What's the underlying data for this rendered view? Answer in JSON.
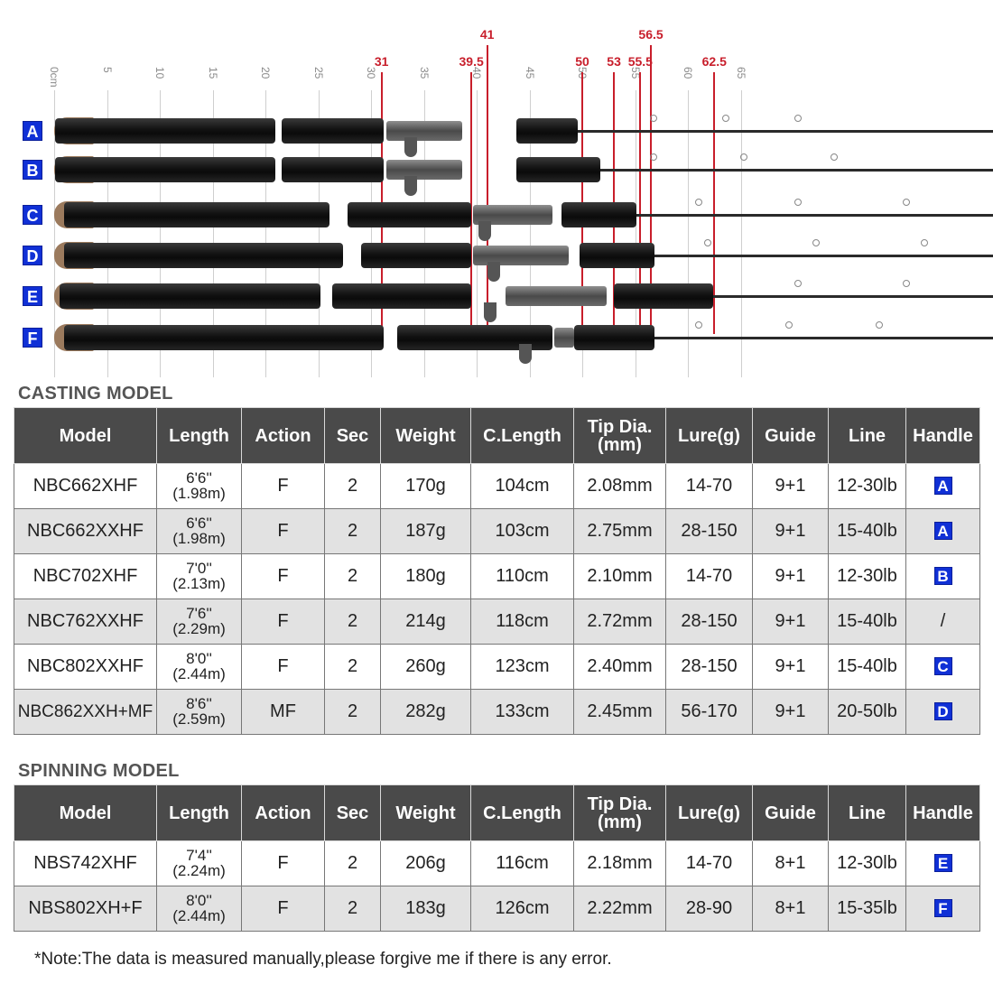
{
  "ruler": {
    "ticks": [
      "0cm",
      "5",
      "10",
      "15",
      "20",
      "25",
      "30",
      "35",
      "40",
      "45",
      "50",
      "55",
      "60",
      "65"
    ],
    "markers": [
      "31",
      "39.5",
      "41",
      "50",
      "53",
      "55.5",
      "56.5",
      "62.5"
    ]
  },
  "rods": [
    {
      "badge": "A"
    },
    {
      "badge": "B"
    },
    {
      "badge": "C"
    },
    {
      "badge": "D"
    },
    {
      "badge": "E"
    },
    {
      "badge": "F"
    }
  ],
  "casting": {
    "title": "CASTING MODEL",
    "headers": [
      "Model",
      "Length",
      "Action",
      "Sec",
      "Weight",
      "C.Length",
      "Tip Dia.",
      "(mm)",
      "Lure(g)",
      "Guide",
      "Line",
      "Handle"
    ],
    "rows": [
      {
        "model": "NBC662XHF",
        "len_ft": "6'6''",
        "len_m": "(1.98m)",
        "action": "F",
        "sec": "2",
        "weight": "170g",
        "clength": "104cm",
        "tip": "2.08mm",
        "lure": "14-70",
        "guide": "9+1",
        "line": "12-30lb",
        "handle": "A"
      },
      {
        "model": "NBC662XXHF",
        "len_ft": "6'6''",
        "len_m": "(1.98m)",
        "action": "F",
        "sec": "2",
        "weight": "187g",
        "clength": "103cm",
        "tip": "2.75mm",
        "lure": "28-150",
        "guide": "9+1",
        "line": "15-40lb",
        "handle": "A"
      },
      {
        "model": "NBC702XHF",
        "len_ft": "7'0''",
        "len_m": "(2.13m)",
        "action": "F",
        "sec": "2",
        "weight": "180g",
        "clength": "110cm",
        "tip": "2.10mm",
        "lure": "14-70",
        "guide": "9+1",
        "line": "12-30lb",
        "handle": "B"
      },
      {
        "model": "NBC762XXHF",
        "len_ft": "7'6''",
        "len_m": "(2.29m)",
        "action": "F",
        "sec": "2",
        "weight": "214g",
        "clength": "118cm",
        "tip": "2.72mm",
        "lure": "28-150",
        "guide": "9+1",
        "line": "15-40lb",
        "handle": "/"
      },
      {
        "model": "NBC802XXHF",
        "len_ft": "8'0''",
        "len_m": "(2.44m)",
        "action": "F",
        "sec": "2",
        "weight": "260g",
        "clength": "123cm",
        "tip": "2.40mm",
        "lure": "28-150",
        "guide": "9+1",
        "line": "15-40lb",
        "handle": "C"
      },
      {
        "model": "NBC862XXH+MF",
        "len_ft": "8'6''",
        "len_m": "(2.59m)",
        "action": "MF",
        "sec": "2",
        "weight": "282g",
        "clength": "133cm",
        "tip": "2.45mm",
        "lure": "56-170",
        "guide": "9+1",
        "line": "20-50lb",
        "handle": "D"
      }
    ]
  },
  "spinning": {
    "title": "SPINNING MODEL",
    "headers": [
      "Model",
      "Length",
      "Action",
      "Sec",
      "Weight",
      "C.Length",
      "Tip Dia.",
      "(mm)",
      "Lure(g)",
      "Guide",
      "Line",
      "Handle"
    ],
    "rows": [
      {
        "model": "NBS742XHF",
        "len_ft": "7'4''",
        "len_m": "(2.24m)",
        "action": "F",
        "sec": "2",
        "weight": "206g",
        "clength": "116cm",
        "tip": "2.18mm",
        "lure": "14-70",
        "guide": "8+1",
        "line": "12-30lb",
        "handle": "E"
      },
      {
        "model": "NBS802XH+F",
        "len_ft": "8'0''",
        "len_m": "(2.44m)",
        "action": "F",
        "sec": "2",
        "weight": "183g",
        "clength": "126cm",
        "tip": "2.22mm",
        "lure": "28-90",
        "guide": "8+1",
        "line": "15-35lb",
        "handle": "F"
      }
    ]
  },
  "note": "*Note:The data is measured manually,please forgive me if there is any error.",
  "colors": {
    "badge": "#1030d6",
    "marker": "#c81e2b",
    "header": "#4a4a4a"
  }
}
